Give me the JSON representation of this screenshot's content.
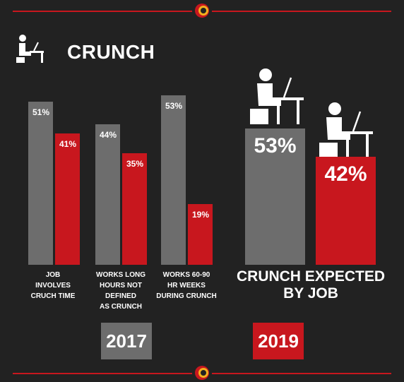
{
  "header": {
    "title": "CRUNCH"
  },
  "colors": {
    "background": "#222222",
    "gray_bar": "#6d6d6d",
    "red_bar": "#c8171e",
    "accent_yellow": "#f2b01e"
  },
  "icons": {
    "header": "person-at-desk-icon",
    "figure_2019_gray": "person-at-laptop-icon",
    "figure_2019_red": "person-at-laptop-icon",
    "logo": "circle-logo-icon"
  },
  "chart_data": [
    {
      "type": "bar",
      "year": "2017",
      "categories": [
        "JOB INVOLVES CRUCH TIME",
        "WORKS LONG HOURS NOT DEFINED AS CRUNCH",
        "WORKS 60-90 HR WEEKS DURING CRUNCH"
      ],
      "category_lines": [
        [
          "JOB",
          "INVOLVES",
          "CRUCH TIME"
        ],
        [
          "WORKS LONG",
          "HOURS NOT DEFINED",
          "AS CRUNCH"
        ],
        [
          "WORKS 60-90",
          "HR WEEKS",
          "DURING CRUNCH"
        ]
      ],
      "series": [
        {
          "color": "gray",
          "values": [
            51,
            44,
            53
          ],
          "labels": [
            "51%",
            "44%",
            "53%"
          ]
        },
        {
          "color": "red",
          "values": [
            41,
            35,
            19
          ],
          "labels": [
            "41%",
            "35%",
            "19%"
          ]
        }
      ],
      "ylim": [
        0,
        53
      ]
    },
    {
      "type": "bar",
      "year": "2019",
      "categories": [
        "CRUNCH EXPECTED BY JOB"
      ],
      "caption_lines": [
        "CRUNCH EXPECTED",
        "BY JOB"
      ],
      "series": [
        {
          "color": "gray",
          "values": [
            53
          ],
          "labels": [
            "53%"
          ]
        },
        {
          "color": "red",
          "values": [
            42
          ],
          "labels": [
            "42%"
          ]
        }
      ]
    }
  ]
}
